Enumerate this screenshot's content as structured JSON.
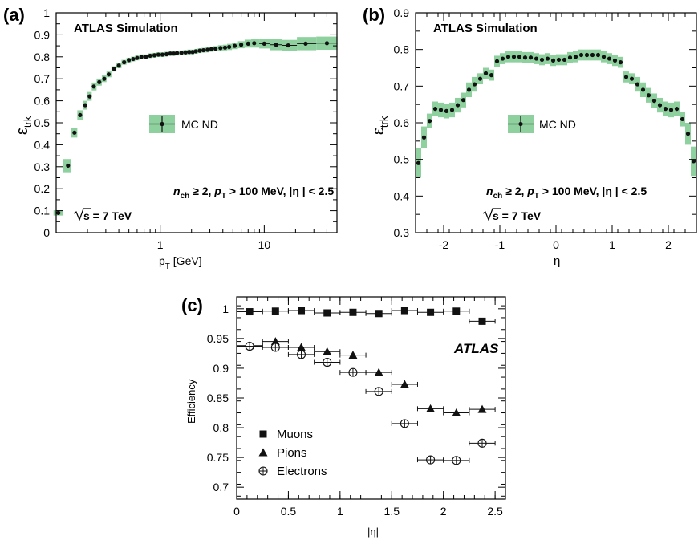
{
  "chart_data": [
    {
      "panel": "(a)",
      "type": "scatter",
      "header": "ATLAS Simulation",
      "xlabel": "p_T [GeV]",
      "ylabel": "ε_trk",
      "x_scale": "log",
      "xlim": [
        0.1,
        50
      ],
      "ylim": [
        0,
        1
      ],
      "y_ticks": [
        0,
        0.1,
        0.2,
        0.3,
        0.4,
        0.5,
        0.6,
        0.7,
        0.8,
        0.9,
        1
      ],
      "y_tick_labels": [
        "0",
        "0.1",
        "0.2",
        "0.3",
        "0.4",
        "0.5",
        "0.6",
        "0.7",
        "0.8",
        "0.9",
        "1"
      ],
      "x_ticks": [
        1,
        10
      ],
      "x_tick_labels": [
        "1",
        "10"
      ],
      "legend": {
        "entry": "MC ND",
        "placement": "center"
      },
      "cut_text": {
        "n": "n",
        "n_sub": "ch",
        "n_rel": " ≥ 2, ",
        "p": "p",
        "p_sub": "T",
        "p_rel": " > 100 MeV, |η | < 2.5"
      },
      "energy_text": {
        "s": "s",
        "rest": " = 7 TeV"
      },
      "series": [
        {
          "x": [
            0.105,
            0.13,
            0.15,
            0.17,
            0.19,
            0.21,
            0.23,
            0.26,
            0.29,
            0.32,
            0.36,
            0.4,
            0.45,
            0.5,
            0.55,
            0.6,
            0.66,
            0.73,
            0.8,
            0.88,
            0.96,
            1.05,
            1.15,
            1.25,
            1.35,
            1.45,
            1.6,
            1.75,
            1.9,
            2.05,
            2.2,
            2.4,
            2.6,
            2.85,
            3.1,
            3.4,
            3.8,
            4.2,
            4.6,
            5.2,
            6.0,
            7.0,
            8.0,
            10.0,
            13.0,
            17.0,
            25.0,
            40.0
          ],
          "y": [
            0.09,
            0.305,
            0.455,
            0.535,
            0.58,
            0.62,
            0.665,
            0.685,
            0.7,
            0.72,
            0.745,
            0.76,
            0.775,
            0.785,
            0.79,
            0.795,
            0.8,
            0.8,
            0.805,
            0.807,
            0.81,
            0.81,
            0.812,
            0.815,
            0.815,
            0.817,
            0.818,
            0.82,
            0.822,
            0.822,
            0.825,
            0.828,
            0.83,
            0.832,
            0.835,
            0.837,
            0.84,
            0.842,
            0.845,
            0.85,
            0.855,
            0.86,
            0.862,
            0.86,
            0.855,
            0.852,
            0.86,
            0.862
          ],
          "err": [
            0.012,
            0.03,
            0.022,
            0.022,
            0.02,
            0.02,
            0.018,
            0.016,
            0.015,
            0.013,
            0.012,
            0.012,
            0.011,
            0.011,
            0.011,
            0.011,
            0.011,
            0.011,
            0.011,
            0.011,
            0.011,
            0.011,
            0.011,
            0.011,
            0.011,
            0.011,
            0.011,
            0.011,
            0.011,
            0.011,
            0.011,
            0.011,
            0.011,
            0.012,
            0.012,
            0.012,
            0.013,
            0.013,
            0.014,
            0.015,
            0.016,
            0.018,
            0.02,
            0.022,
            0.025,
            0.025,
            0.03,
            0.03
          ]
        }
      ]
    },
    {
      "panel": "(b)",
      "type": "scatter",
      "header": "ATLAS Simulation",
      "xlabel": "η",
      "ylabel": "ε_trk",
      "xlim": [
        -2.5,
        2.5
      ],
      "ylim": [
        0.3,
        0.9
      ],
      "y_ticks": [
        0.3,
        0.4,
        0.5,
        0.6,
        0.7,
        0.8,
        0.9
      ],
      "y_tick_labels": [
        "0.3",
        "0.4",
        "0.5",
        "0.6",
        "0.7",
        "0.8",
        "0.9"
      ],
      "x_ticks": [
        -2,
        -1,
        0,
        1,
        2
      ],
      "x_tick_labels": [
        "-2",
        "-1",
        "0",
        "1",
        "2"
      ],
      "legend": {
        "entry": "MC ND",
        "placement": "center"
      },
      "cut_text": {
        "n": "n",
        "n_sub": "ch",
        "n_rel": " ≥ 2, ",
        "p": "p",
        "p_sub": "T",
        "p_rel": " > 100 MeV, |η | < 2.5"
      },
      "energy_text": {
        "s": "s",
        "rest": " = 7 TeV"
      },
      "series": [
        {
          "x": [
            -2.45,
            -2.35,
            -2.25,
            -2.15,
            -2.05,
            -1.95,
            -1.85,
            -1.75,
            -1.65,
            -1.55,
            -1.45,
            -1.35,
            -1.25,
            -1.15,
            -1.05,
            -0.95,
            -0.85,
            -0.75,
            -0.65,
            -0.55,
            -0.45,
            -0.35,
            -0.25,
            -0.15,
            -0.05,
            0.05,
            0.15,
            0.25,
            0.35,
            0.45,
            0.55,
            0.65,
            0.75,
            0.85,
            0.95,
            1.05,
            1.15,
            1.25,
            1.35,
            1.45,
            1.55,
            1.65,
            1.75,
            1.85,
            1.95,
            2.05,
            2.15,
            2.25,
            2.35,
            2.45
          ],
          "y": [
            0.49,
            0.56,
            0.605,
            0.638,
            0.635,
            0.632,
            0.635,
            0.648,
            0.662,
            0.69,
            0.705,
            0.72,
            0.735,
            0.73,
            0.768,
            0.775,
            0.78,
            0.78,
            0.78,
            0.778,
            0.778,
            0.775,
            0.772,
            0.775,
            0.77,
            0.772,
            0.772,
            0.778,
            0.78,
            0.785,
            0.785,
            0.785,
            0.785,
            0.78,
            0.775,
            0.77,
            0.765,
            0.725,
            0.72,
            0.705,
            0.69,
            0.675,
            0.66,
            0.648,
            0.638,
            0.635,
            0.638,
            0.61,
            0.57,
            0.495
          ],
          "err": [
            0.04,
            0.03,
            0.02,
            0.02,
            0.02,
            0.02,
            0.02,
            0.02,
            0.02,
            0.02,
            0.02,
            0.015,
            0.015,
            0.015,
            0.015,
            0.015,
            0.015,
            0.015,
            0.015,
            0.015,
            0.015,
            0.015,
            0.015,
            0.015,
            0.015,
            0.015,
            0.015,
            0.015,
            0.015,
            0.015,
            0.015,
            0.015,
            0.015,
            0.015,
            0.015,
            0.015,
            0.015,
            0.015,
            0.015,
            0.02,
            0.02,
            0.02,
            0.02,
            0.02,
            0.02,
            0.02,
            0.02,
            0.02,
            0.03,
            0.04
          ]
        }
      ]
    },
    {
      "panel": "(c)",
      "type": "scatter",
      "header": "ATLAS",
      "xlabel": "|η|",
      "ylabel": "Efficiency",
      "xlim": [
        0,
        2.6
      ],
      "ylim": [
        0.68,
        1.02
      ],
      "y_ticks": [
        0.7,
        0.75,
        0.8,
        0.85,
        0.9,
        0.95,
        1
      ],
      "y_tick_labels": [
        "0.7",
        "0.75",
        "0.8",
        "0.85",
        "0.9",
        "0.95",
        "1"
      ],
      "x_ticks": [
        0,
        0.5,
        1,
        1.5,
        2,
        2.5
      ],
      "x_tick_labels": [
        "0",
        "0.5",
        "1",
        "1.5",
        "2",
        "2.5"
      ],
      "x_err": 0.125,
      "legend_placement": "bottom-left",
      "series": [
        {
          "name": "Muons",
          "marker": "square",
          "x": [
            0.125,
            0.375,
            0.625,
            0.875,
            1.125,
            1.375,
            1.625,
            1.875,
            2.125,
            2.375
          ],
          "y": [
            0.995,
            0.996,
            0.997,
            0.993,
            0.994,
            0.992,
            0.997,
            0.994,
            0.996,
            0.979
          ]
        },
        {
          "name": "Pions",
          "marker": "triangle",
          "x": [
            0.125,
            0.375,
            0.625,
            0.875,
            1.125,
            1.375,
            1.625,
            1.875,
            2.125,
            2.375
          ],
          "y": [
            0.938,
            0.945,
            0.935,
            0.928,
            0.922,
            0.893,
            0.873,
            0.832,
            0.825,
            0.831
          ]
        },
        {
          "name": "Electrons",
          "marker": "open-circle",
          "x": [
            0.125,
            0.375,
            0.625,
            0.875,
            1.125,
            1.375,
            1.625,
            1.875,
            2.125,
            2.375
          ],
          "y": [
            0.937,
            0.935,
            0.923,
            0.91,
            0.893,
            0.861,
            0.807,
            0.746,
            0.745,
            0.774
          ],
          "yerr": [
            0.004,
            0.004,
            0.004,
            0.004,
            0.004,
            0.004,
            0.005,
            0.005,
            0.005,
            0.006
          ]
        }
      ]
    }
  ],
  "colors": {
    "band": "#8fd19e",
    "marker": "#111111",
    "axis": "#000000"
  }
}
